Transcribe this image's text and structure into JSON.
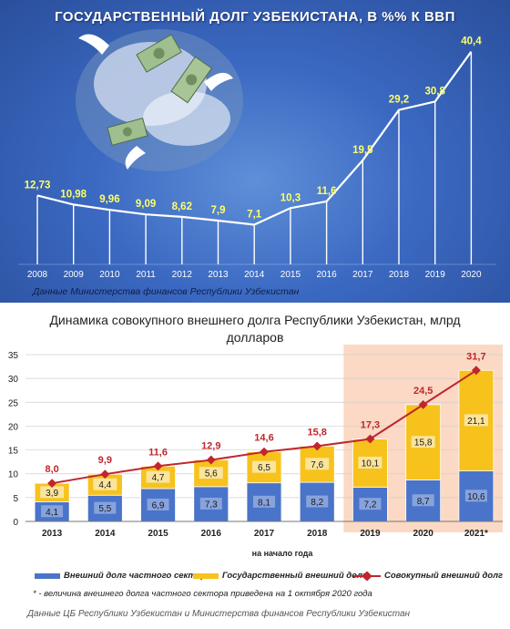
{
  "chart_data": [
    {
      "type": "line",
      "title": "ГОСУДАРСТВЕННЫЙ ДОЛГ УЗБЕКИСТАНА, В %% К ВВП",
      "x": [
        "2008",
        "2009",
        "2010",
        "2011",
        "2012",
        "2013",
        "2014",
        "2015",
        "2016",
        "2017",
        "2018",
        "2019",
        "2020"
      ],
      "series": [
        {
          "values": [
            12.73,
            10.98,
            9.96,
            9.09,
            8.62,
            7.9,
            7.1,
            10.3,
            11.6,
            19.5,
            29.2,
            30.8,
            40.4
          ]
        }
      ],
      "data_labels": [
        "12,73",
        "10,98",
        "9,96",
        "9,09",
        "8,62",
        "7,9",
        "7,1",
        "10,3",
        "11,6",
        "19,5",
        "29,2",
        "30,8",
        "40,4"
      ],
      "source": "Данные Министерства финансов Республики Узбекистан",
      "colors": {
        "line": "#ffffff",
        "label": "#ffff66",
        "background": "#3b69c2"
      }
    },
    {
      "type": "bar",
      "stacked": true,
      "title": "Динамика совокупного внешнего долга Республики Узбекистан, млрд долларов",
      "xlabel": "на начало года",
      "ylim": [
        0,
        35
      ],
      "yticks": [
        "0",
        "5",
        "10",
        "15",
        "20",
        "25",
        "30",
        "35"
      ],
      "categories": [
        "2013",
        "2014",
        "2015",
        "2016",
        "2017",
        "2018",
        "2019",
        "2020",
        "2021*"
      ],
      "series": [
        {
          "name": "Внешний долг частного сектора",
          "values": [
            4.1,
            5.5,
            6.9,
            7.3,
            8.1,
            8.2,
            7.2,
            8.7,
            10.6
          ],
          "labels": [
            "4,1",
            "5,5",
            "6,9",
            "7,3",
            "8,1",
            "8,2",
            "7,2",
            "8,7",
            "10,6"
          ],
          "color": "#4a74c9"
        },
        {
          "name": "Государственный внешний долг",
          "values": [
            3.9,
            4.4,
            4.7,
            5.6,
            6.5,
            7.6,
            10.1,
            15.8,
            21.1
          ],
          "labels": [
            "3,9",
            "4,4",
            "4,7",
            "5,6",
            "6,5",
            "7,6",
            "10,1",
            "15,8",
            "21,1"
          ],
          "color": "#f7c21c"
        },
        {
          "name": "Совокупный внешний долг",
          "type": "line",
          "values": [
            8.0,
            9.9,
            11.6,
            12.9,
            14.6,
            15.8,
            17.3,
            24.5,
            31.7
          ],
          "labels": [
            "8,0",
            "9,9",
            "11,6",
            "12,9",
            "14,6",
            "15,8",
            "17,3",
            "24,5",
            "31,7"
          ],
          "color": "#c0262d"
        }
      ],
      "highlight_categories": [
        "2019",
        "2020",
        "2021*"
      ],
      "highlight_color": "#fbd9c4",
      "note": "* - величина внешнего долга частного сектора приведена на 1 октября 2020 года",
      "source": "Данные ЦБ Республики Узбекистан и Министерства финансов Республики Узбекистан"
    }
  ]
}
